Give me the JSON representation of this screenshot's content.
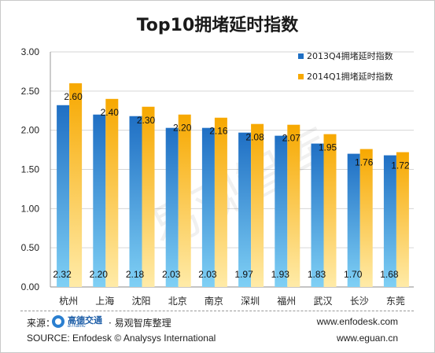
{
  "title": "Top10拥堵延时指数",
  "chart_data": {
    "type": "bar",
    "categories": [
      "杭州",
      "上海",
      "沈阳",
      "北京",
      "南京",
      "深圳",
      "福州",
      "武汉",
      "长沙",
      "东莞"
    ],
    "series": [
      {
        "name": "2013Q4拥堵延时指数",
        "values": [
          2.32,
          2.2,
          2.18,
          2.03,
          2.03,
          1.97,
          1.93,
          1.83,
          1.7,
          1.68
        ],
        "labels": [
          "2.32",
          "2.20",
          "2.18",
          "2.03",
          "2.03",
          "1.97",
          "1.93",
          "1.83",
          "1.70",
          "1.68"
        ]
      },
      {
        "name": "2014Q1拥堵延时指数",
        "values": [
          2.6,
          2.4,
          2.3,
          2.2,
          2.16,
          2.08,
          2.07,
          1.95,
          1.76,
          1.72
        ],
        "labels": [
          "2.60",
          "2.40",
          "2.30",
          "2.20",
          "2.16",
          "2.08",
          "2.07",
          "1.95",
          "1.76",
          "1.72"
        ]
      }
    ],
    "y_ticks": [
      "0.00",
      "0.50",
      "1.00",
      "1.50",
      "2.00",
      "2.50",
      "3.00"
    ],
    "ylim": [
      0,
      3
    ],
    "grid": true,
    "legend": "top-right",
    "colors": {
      "series1": "#1f6fc4",
      "series1_light": "#7fd0f5",
      "series2": "#f7a800",
      "series2_light": "#ffeba8"
    }
  },
  "watermark": "易观智库",
  "footer": {
    "source_label": "来源：",
    "brand1": "高德交通",
    "brand1_sub": "aTraffic",
    "brand2": "· 易观智库整理",
    "source_en": "SOURCE: Enfodesk © Analysys International",
    "site1": "www.enfodesk.com",
    "site2": "www.eguan.cn"
  }
}
